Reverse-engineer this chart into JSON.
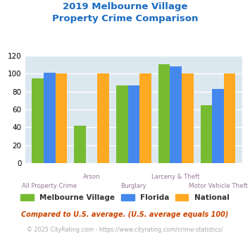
{
  "title": "2019 Melbourne Village\nProperty Crime Comparison",
  "title_color": "#1a6bbf",
  "categories": [
    "All Property Crime",
    "Arson",
    "Burglary",
    "Larceny & Theft",
    "Motor Vehicle Theft"
  ],
  "stagger_up": [
    false,
    true,
    false,
    true,
    false
  ],
  "series": {
    "Melbourne Village": [
      95,
      42,
      87,
      111,
      65
    ],
    "Florida": [
      101,
      null,
      87,
      108,
      83
    ],
    "National": [
      100,
      100,
      100,
      100,
      100
    ]
  },
  "series_colors": {
    "Melbourne Village": "#77bb33",
    "Florida": "#4488ee",
    "National": "#ffaa22"
  },
  "ylim": [
    0,
    120
  ],
  "yticks": [
    0,
    20,
    40,
    60,
    80,
    100,
    120
  ],
  "xlabel_color": "#997799",
  "background_color": "#dce8f0",
  "grid_color": "#ffffff",
  "footnote1": "Compared to U.S. average. (U.S. average equals 100)",
  "footnote2": "© 2025 CityRating.com - https://www.cityrating.com/crime-statistics/",
  "footnote1_color": "#cc4400",
  "footnote2_color": "#aaaaaa"
}
